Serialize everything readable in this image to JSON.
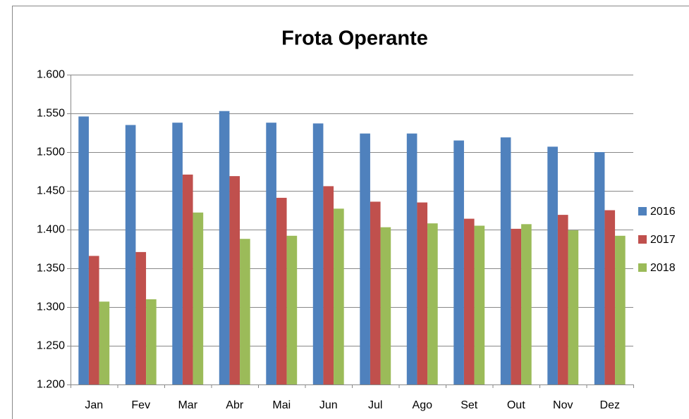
{
  "chart_data": {
    "type": "bar",
    "title": "Frota Operante",
    "categories": [
      "Jan",
      "Fev",
      "Mar",
      "Abr",
      "Mai",
      "Jun",
      "Jul",
      "Ago",
      "Set",
      "Out",
      "Nov",
      "Dez"
    ],
    "series": [
      {
        "name": "2016",
        "color": "#4f81bd",
        "values": [
          1546,
          1535,
          1538,
          1553,
          1538,
          1537,
          1524,
          1524,
          1515,
          1519,
          1507,
          1500
        ]
      },
      {
        "name": "2017",
        "color": "#c0504d",
        "values": [
          1366,
          1371,
          1471,
          1469,
          1441,
          1456,
          1436,
          1435,
          1414,
          1401,
          1419,
          1425
        ]
      },
      {
        "name": "2018",
        "color": "#9bbb59",
        "values": [
          1307,
          1310,
          1422,
          1388,
          1392,
          1427,
          1403,
          1408,
          1405,
          1407,
          1399,
          1392
        ]
      }
    ],
    "ylim": [
      1200,
      1600
    ],
    "yticks": [
      {
        "value": 1200,
        "label": "1.200"
      },
      {
        "value": 1250,
        "label": "1.250"
      },
      {
        "value": 1300,
        "label": "1.300"
      },
      {
        "value": 1350,
        "label": "1.350"
      },
      {
        "value": 1400,
        "label": "1.400"
      },
      {
        "value": 1450,
        "label": "1.450"
      },
      {
        "value": 1500,
        "label": "1.500"
      },
      {
        "value": 1550,
        "label": "1.550"
      },
      {
        "value": 1600,
        "label": "1.600"
      }
    ],
    "grid": true,
    "legend": "right"
  }
}
